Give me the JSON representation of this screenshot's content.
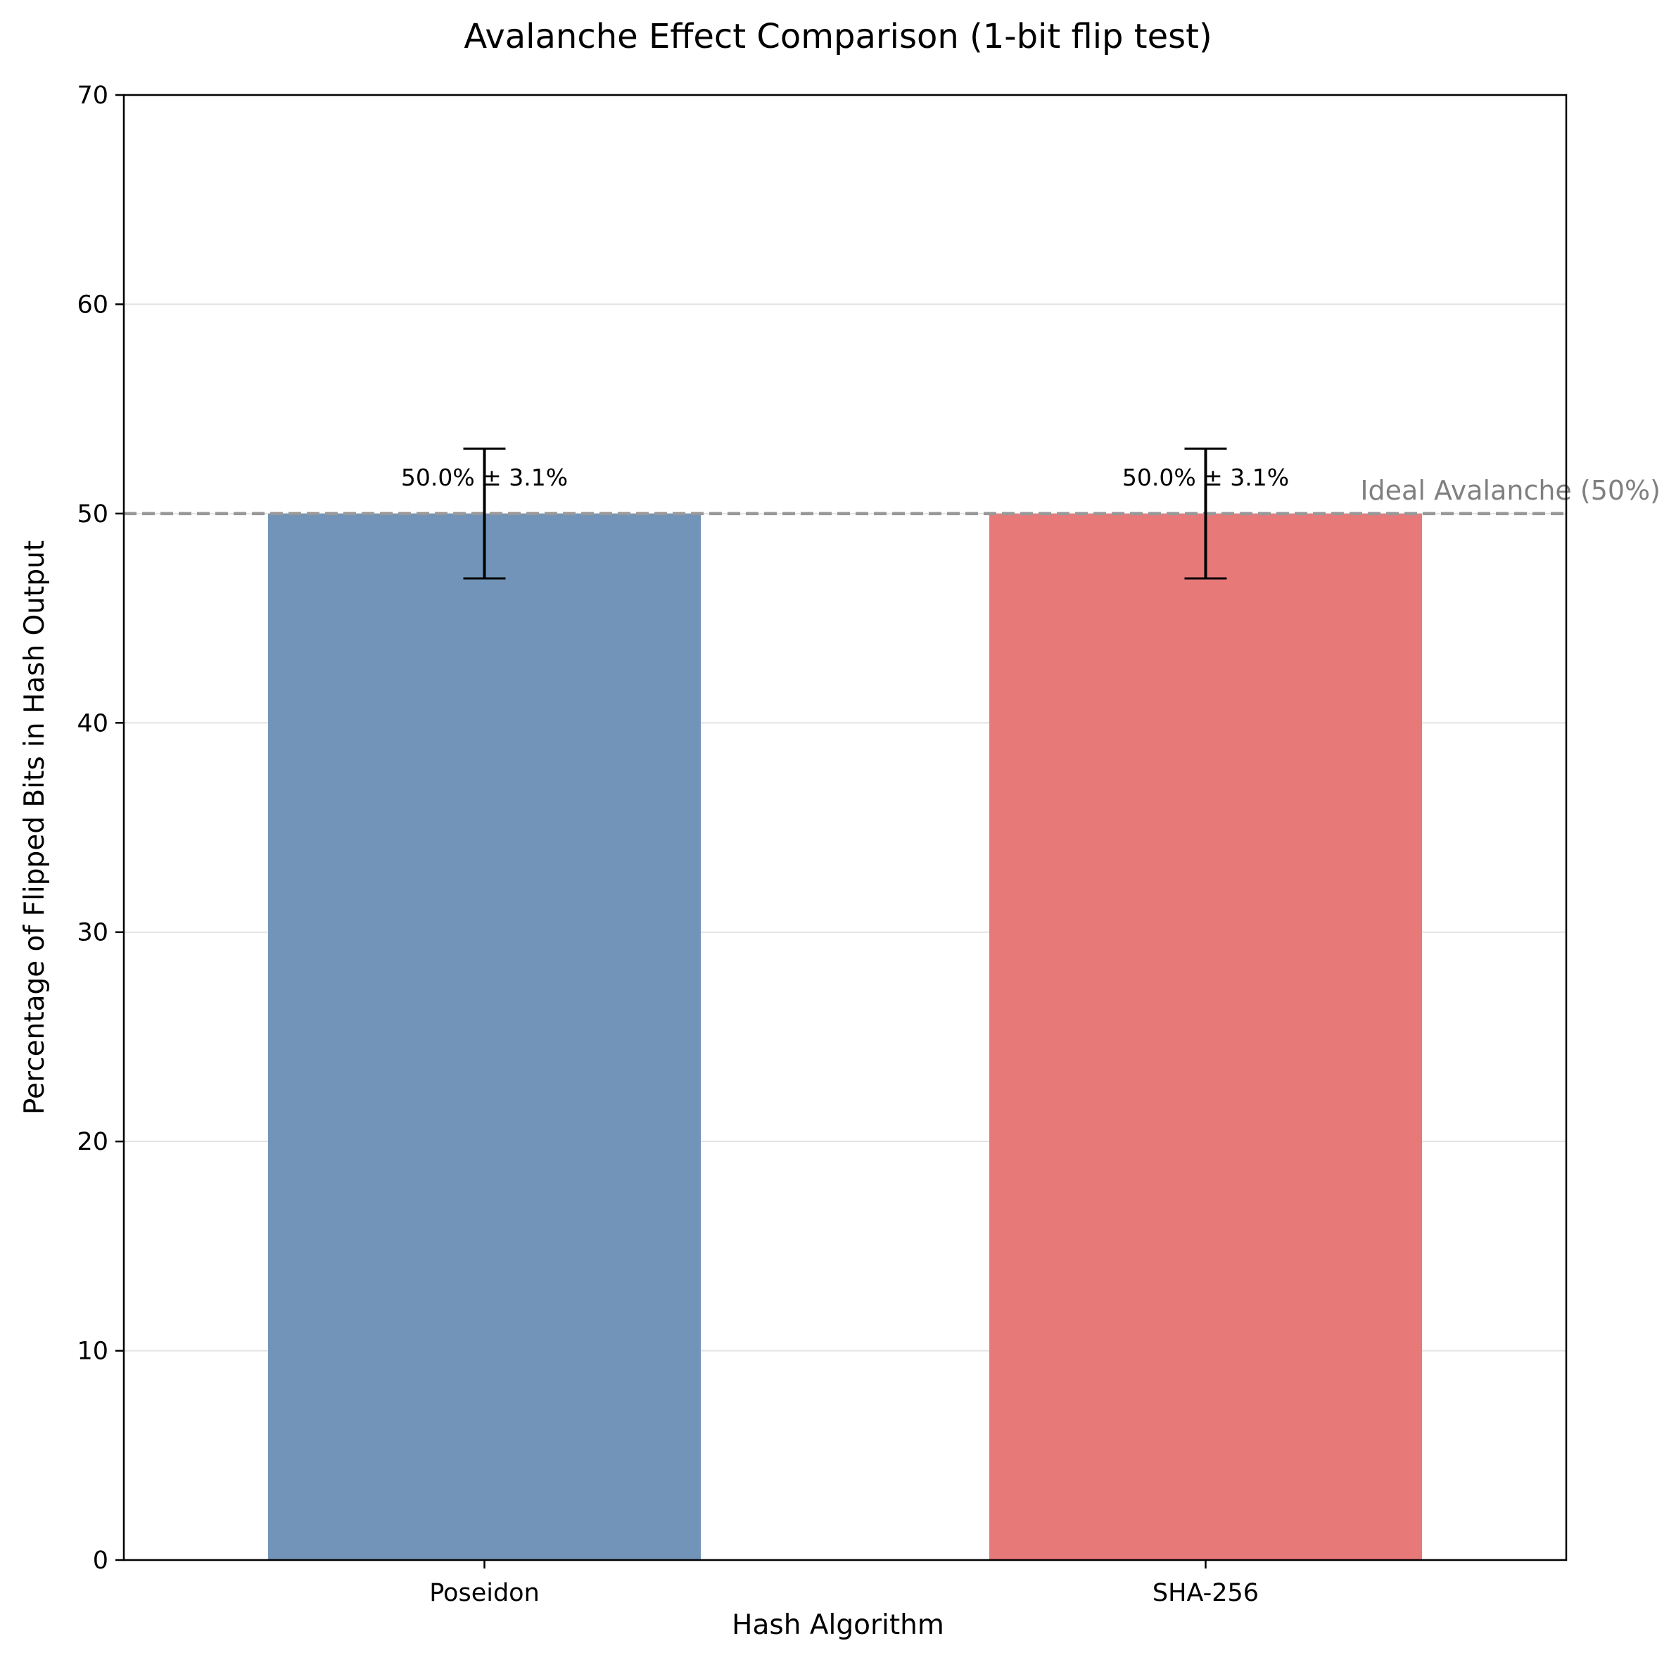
{
  "chart_data": {
    "type": "bar",
    "title": "Avalanche Effect Comparison (1-bit flip test)",
    "xlabel": "Hash Algorithm",
    "ylabel": "Percentage of Flipped Bits in Hash Output",
    "categories": [
      "Poseidon",
      "SHA-256"
    ],
    "values": [
      50.0,
      50.0
    ],
    "errors": [
      3.1,
      3.1
    ],
    "data_labels": [
      "50.0% ± 3.1%",
      "50.0% ± 3.1%"
    ],
    "colors": [
      "#7294b8",
      "#e77979"
    ],
    "ylim": [
      0,
      70
    ],
    "yticks": [
      0,
      10,
      20,
      30,
      40,
      50,
      60,
      70
    ],
    "grid": "y",
    "reference_line": {
      "value": 50,
      "label": "Ideal Avalanche (50%)",
      "color": "#999999",
      "style": "dashed"
    }
  }
}
